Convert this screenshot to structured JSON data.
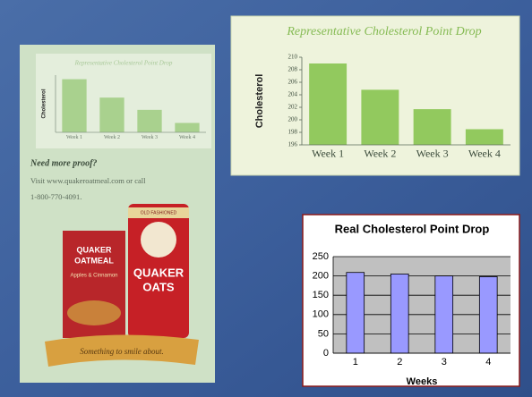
{
  "chart_data": [
    {
      "type": "bar",
      "title": "Representative Cholesterol Point Drop",
      "ylabel": "Cholesterol",
      "categories": [
        "Week 1",
        "Week 2",
        "Week 3",
        "Week 4"
      ],
      "values": [
        209,
        204.5,
        201.5,
        198.3
      ],
      "color": "#a9d18e",
      "ylim": [
        196,
        210
      ],
      "grid": false
    },
    {
      "type": "bar",
      "title": "Representative Cholesterol Point Drop",
      "ylabel": "Cholesterol",
      "categories": [
        "Week 1",
        "Week 2",
        "Week 3",
        "Week 4"
      ],
      "values": [
        209,
        204.8,
        201.7,
        198.5
      ],
      "color": "#92c95e",
      "ylim": [
        196,
        210
      ],
      "yticks": [
        196,
        198,
        200,
        202,
        204,
        206,
        208,
        210
      ],
      "grid": false
    },
    {
      "type": "bar",
      "title": "Real Cholesterol Point Drop",
      "xlabel": "Weeks",
      "categories": [
        "1",
        "2",
        "3",
        "4"
      ],
      "values": [
        209,
        205,
        200,
        198
      ],
      "color": "#9999ff",
      "ylim": [
        0,
        250
      ],
      "yticks": [
        0,
        50,
        100,
        150,
        200,
        250
      ],
      "grid": true
    }
  ],
  "ad": {
    "heading": "Need more proof?",
    "line1": "Visit www.quakeroatmeal.com or call",
    "line2": "1-800-770-4091.",
    "box1_brand": "QUAKER",
    "box1_name": "OATMEAL",
    "box1_flavor": "Apples & Cinnamon",
    "box2_top": "OLD FASHIONED",
    "box2_brand": "QUAKER",
    "box2_name": "OATS",
    "slogan": "Something to smile about."
  }
}
